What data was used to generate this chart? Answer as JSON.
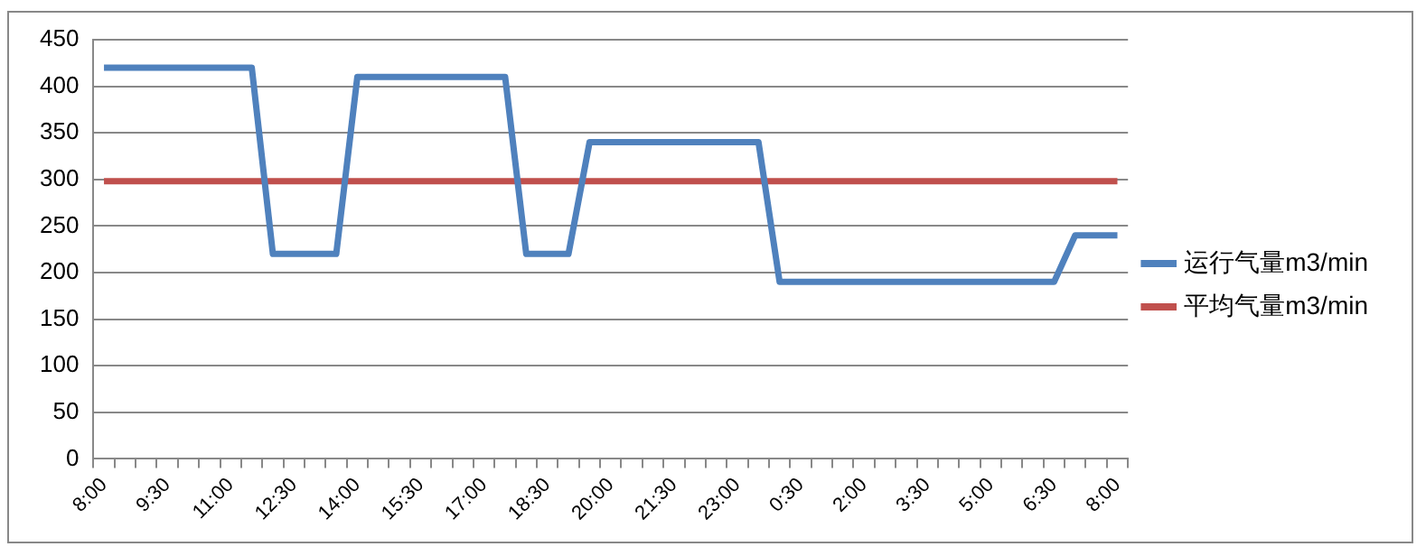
{
  "chart_data": {
    "type": "line",
    "categories": [
      "8:00",
      null,
      null,
      "9:30",
      null,
      null,
      "11:00",
      null,
      null,
      "12:30",
      null,
      null,
      "14:00",
      null,
      null,
      "15:30",
      null,
      null,
      "17:00",
      null,
      null,
      "18:30",
      null,
      null,
      "20:00",
      null,
      null,
      "21:30",
      null,
      null,
      "23:00",
      null,
      null,
      "0:30",
      null,
      null,
      "2:00",
      null,
      null,
      "3:30",
      null,
      null,
      "5:00",
      null,
      null,
      "6:30",
      null,
      null,
      "8:00"
    ],
    "series": [
      {
        "name": "运行气量m3/min",
        "color": "#4f81bd",
        "values": [
          420,
          420,
          420,
          420,
          420,
          420,
          420,
          420,
          220,
          220,
          220,
          220,
          410,
          410,
          410,
          410,
          410,
          410,
          410,
          410,
          220,
          220,
          220,
          340,
          340,
          340,
          340,
          340,
          340,
          340,
          340,
          340,
          190,
          190,
          190,
          190,
          190,
          190,
          190,
          190,
          190,
          190,
          190,
          190,
          190,
          190,
          240,
          240,
          240
        ]
      },
      {
        "name": "平均气量m3/min",
        "color": "#c0504d",
        "values": [
          298,
          298,
          298,
          298,
          298,
          298,
          298,
          298,
          298,
          298,
          298,
          298,
          298,
          298,
          298,
          298,
          298,
          298,
          298,
          298,
          298,
          298,
          298,
          298,
          298,
          298,
          298,
          298,
          298,
          298,
          298,
          298,
          298,
          298,
          298,
          298,
          298,
          298,
          298,
          298,
          298,
          298,
          298,
          298,
          298,
          298,
          298,
          298,
          298
        ]
      }
    ],
    "ylim": [
      0,
      450
    ],
    "yticks": [
      0,
      50,
      100,
      150,
      200,
      250,
      300,
      350,
      400,
      450
    ],
    "grid": "y",
    "legend": "right",
    "marker": "none"
  }
}
